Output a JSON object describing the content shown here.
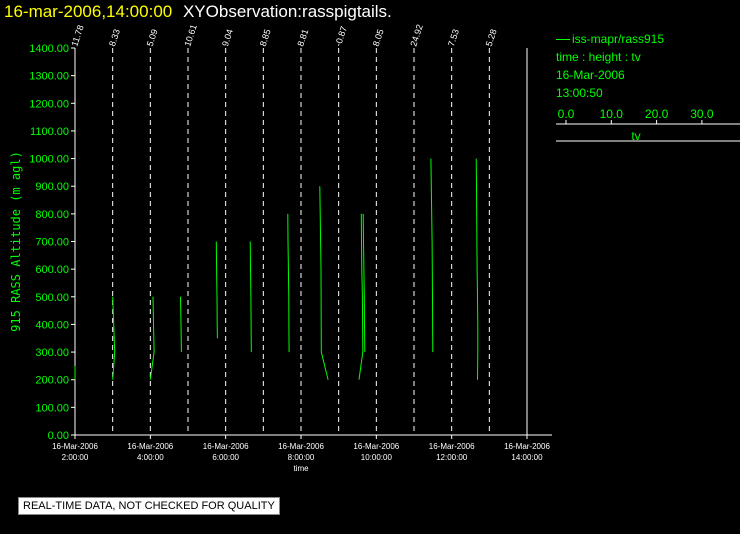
{
  "header": {
    "date_time": "16-mar-2006,14:00:00",
    "title": "XYObservation:rasspigtails."
  },
  "legend": {
    "series_label": "iss-mapr/rass915",
    "description": "time : height : tv",
    "date": "16-Mar-2006",
    "time": "13:00:50",
    "scale_ticks": [
      "0.0",
      "10.0",
      "20.0",
      "30.0"
    ],
    "scale_label": "tv"
  },
  "footer": {
    "qc_notice": "REAL-TIME DATA, NOT CHECKED FOR QUALITY"
  },
  "colors": {
    "series": "#00ff00",
    "axis": "#ffffff",
    "title_date": "#ffff00",
    "background": "#000000"
  },
  "chart_data": {
    "type": "line",
    "ylabel": "915 RASS Altitude (m agl)",
    "xlabel": "time",
    "ylim": [
      0,
      1400
    ],
    "yticks": [
      "0.00",
      "100.00",
      "200.00",
      "300.00",
      "400.00",
      "500.00",
      "600.00",
      "700.00",
      "800.00",
      "900.00",
      "1000.00",
      "1100.00",
      "1200.00",
      "1300.00",
      "1400.00"
    ],
    "xlim_hours": [
      2,
      14
    ],
    "xticks": [
      {
        "date": "16-Mar-2006",
        "time": "2:00:00"
      },
      {
        "date": "16-Mar-2006",
        "time": "4:00:00"
      },
      {
        "date": "16-Mar-2006",
        "time": "6:00:00"
      },
      {
        "date": "16-Mar-2006",
        "time": "8:00:00"
      },
      {
        "date": "16-Mar-2006",
        "time": "10:00:00"
      },
      {
        "date": "16-Mar-2006",
        "time": "12:00:00"
      },
      {
        "date": "16-Mar-2006",
        "time": "14:00:00"
      }
    ],
    "profile_times_hours": [
      2,
      3,
      4,
      5,
      6,
      7,
      8,
      9,
      10,
      11,
      12,
      13
    ],
    "profile_labels": [
      "11.78",
      "8.33",
      "5.09",
      "10.61",
      "9.04",
      "8.85",
      "8.81",
      "-0.87",
      "8.05",
      "24.92",
      "7.53",
      "5.28"
    ],
    "series": [
      {
        "t": 2.0,
        "points": [
          [
            0.0,
            200
          ],
          [
            0.0,
            250
          ]
        ]
      },
      {
        "t": 3.0,
        "points": [
          [
            0.0,
            500
          ],
          [
            0.4,
            350
          ],
          [
            0.55,
            300
          ],
          [
            0.0,
            200
          ]
        ]
      },
      {
        "t": 4.0,
        "points": [
          [
            0.7,
            500
          ],
          [
            0.85,
            400
          ],
          [
            1.0,
            300
          ],
          [
            0.0,
            200
          ]
        ]
      },
      {
        "t": 4.8,
        "points": [
          [
            0.0,
            500
          ],
          [
            0.15,
            400
          ],
          [
            0.25,
            300
          ]
        ]
      },
      {
        "t": 5.75,
        "points": [
          [
            0.0,
            700
          ],
          [
            0.1,
            600
          ],
          [
            0.2,
            500
          ],
          [
            0.25,
            400
          ],
          [
            0.3,
            350
          ]
        ]
      },
      {
        "t": 6.65,
        "points": [
          [
            0.0,
            700
          ],
          [
            0.1,
            600
          ],
          [
            0.2,
            500
          ],
          [
            0.25,
            400
          ],
          [
            0.3,
            300
          ]
        ]
      },
      {
        "t": 7.65,
        "points": [
          [
            0.0,
            800
          ],
          [
            0.05,
            700
          ],
          [
            0.15,
            600
          ],
          [
            0.25,
            500
          ],
          [
            0.3,
            400
          ],
          [
            0.35,
            300
          ]
        ]
      },
      {
        "t": 8.5,
        "points": [
          [
            0.0,
            900
          ],
          [
            0.1,
            800
          ],
          [
            0.2,
            700
          ],
          [
            0.3,
            600
          ],
          [
            0.35,
            400
          ],
          [
            0.4,
            300
          ],
          [
            2.2,
            200
          ]
        ]
      },
      {
        "t": 9.6,
        "points": [
          [
            0.0,
            800
          ],
          [
            0.05,
            700
          ],
          [
            0.15,
            600
          ],
          [
            0.3,
            500
          ],
          [
            0.35,
            400
          ],
          [
            0.4,
            300
          ],
          [
            -0.6,
            200
          ]
        ]
      },
      {
        "t": 9.65,
        "points": [
          [
            0.0,
            800
          ],
          [
            0.1,
            700
          ],
          [
            0.2,
            600
          ],
          [
            0.3,
            500
          ],
          [
            0.35,
            400
          ],
          [
            0.45,
            300
          ]
        ]
      },
      {
        "t": 11.45,
        "points": [
          [
            0.0,
            1000
          ],
          [
            0.1,
            900
          ],
          [
            0.2,
            800
          ],
          [
            0.3,
            700
          ],
          [
            0.35,
            600
          ],
          [
            0.4,
            500
          ],
          [
            0.45,
            400
          ],
          [
            0.5,
            300
          ]
        ]
      },
      {
        "t": 12.65,
        "points": [
          [
            0.0,
            1000
          ],
          [
            0.1,
            900
          ],
          [
            0.15,
            800
          ],
          [
            0.2,
            700
          ],
          [
            0.25,
            600
          ],
          [
            0.35,
            500
          ],
          [
            0.45,
            400
          ],
          [
            0.45,
            300
          ],
          [
            0.35,
            200
          ]
        ]
      }
    ]
  }
}
